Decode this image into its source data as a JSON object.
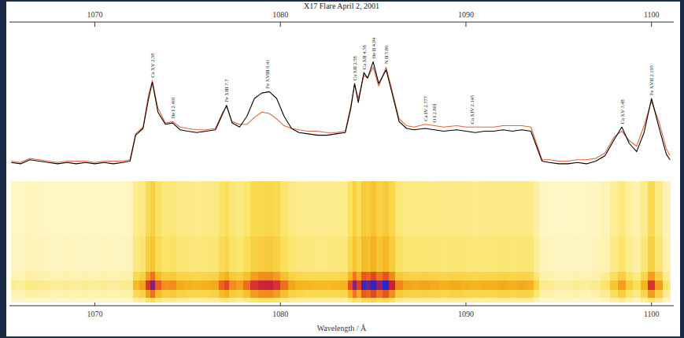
{
  "chart_data": {
    "type": "line",
    "title": "X17 Flare April 2, 2001",
    "x_label": "Wavelength / Å",
    "x": [
      1065.5,
      1066.0,
      1066.5,
      1067.0,
      1067.5,
      1068.0,
      1068.5,
      1069.0,
      1069.5,
      1070.0,
      1070.5,
      1071.0,
      1071.5,
      1071.9,
      1072.2,
      1072.6,
      1072.9,
      1073.1,
      1073.4,
      1073.8,
      1074.2,
      1074.6,
      1075.0,
      1075.5,
      1076.0,
      1076.5,
      1076.9,
      1077.1,
      1077.4,
      1077.8,
      1078.2,
      1078.6,
      1079.0,
      1079.4,
      1079.8,
      1080.2,
      1080.6,
      1081.0,
      1081.5,
      1082.0,
      1082.5,
      1083.0,
      1083.5,
      1083.8,
      1084.0,
      1084.2,
      1084.5,
      1084.7,
      1085.0,
      1085.3,
      1085.7,
      1086.0,
      1086.4,
      1086.8,
      1087.2,
      1087.8,
      1088.3,
      1088.8,
      1089.5,
      1090.0,
      1090.5,
      1091.0,
      1091.5,
      1092.0,
      1092.5,
      1093.0,
      1093.5,
      1093.8,
      1094.1,
      1094.5,
      1095.0,
      1095.5,
      1096.0,
      1096.5,
      1097.0,
      1097.5,
      1098.0,
      1098.4,
      1098.8,
      1099.2,
      1099.6,
      1100.0,
      1100.4,
      1100.8,
      1101.0
    ],
    "series": [
      {
        "color": "#000000",
        "values": [
          8,
          7,
          10,
          9,
          8,
          7,
          8,
          7,
          8,
          7,
          8,
          7,
          8,
          9,
          28,
          33,
          55,
          67,
          45,
          36,
          37,
          32,
          31,
          30,
          31,
          32,
          44,
          50,
          37,
          34,
          42,
          55,
          59,
          60,
          55,
          42,
          33,
          30,
          29,
          28,
          28,
          29,
          30,
          48,
          66,
          52,
          74,
          70,
          82,
          66,
          76,
          60,
          38,
          33,
          32,
          33,
          32,
          31,
          32,
          31,
          30,
          31,
          31,
          32,
          31,
          32,
          31,
          20,
          9,
          8,
          7,
          7,
          8,
          7,
          9,
          13,
          25,
          34,
          22,
          16,
          30,
          55,
          34,
          14,
          10
        ]
      },
      {
        "color": "#e2643c",
        "values": [
          9,
          8,
          11,
          10,
          9,
          8,
          9,
          9,
          9,
          8,
          9,
          9,
          9,
          10,
          29,
          34,
          58,
          68,
          48,
          37,
          38,
          34,
          33,
          32,
          32,
          33,
          45,
          49,
          38,
          36,
          36,
          41,
          45,
          44,
          40,
          35,
          33,
          32,
          31,
          31,
          30,
          30,
          31,
          50,
          65,
          55,
          72,
          70,
          78,
          64,
          78,
          62,
          40,
          35,
          34,
          36,
          35,
          34,
          35,
          34,
          34,
          34,
          34,
          35,
          35,
          35,
          34,
          22,
          10,
          10,
          9,
          9,
          10,
          10,
          11,
          15,
          27,
          31,
          24,
          20,
          35,
          53,
          38,
          18,
          13
        ]
      }
    ],
    "xlim": [
      1065.4,
      1101.2
    ],
    "ylim": [
      0,
      110
    ],
    "xticks": [
      1070,
      1080,
      1090,
      1100
    ],
    "tick_labels": "x",
    "annotations": [
      {
        "text": "Ca XV 2.58",
        "x": 1073.1
      },
      {
        "text": "He I 2.401",
        "x": 1074.2
      },
      {
        "text": "Fe XIII 7.7",
        "x": 1077.1
      },
      {
        "text": "Fe XVIII 9.41",
        "x": 1079.3
      },
      {
        "text": "Ca XII 2.58",
        "x": 1084.0
      },
      {
        "text": "Ca XII 4.58",
        "x": 1084.5
      },
      {
        "text": "He II 4.94",
        "x": 1085.0
      },
      {
        "text": "N II 5.86",
        "x": 1085.7
      },
      {
        "text": "Ca IV 2.777",
        "x": 1087.8
      },
      {
        "text": "O I 2.801",
        "x": 1088.3
      },
      {
        "text": "Ca XIV 2.145",
        "x": 1090.3
      },
      {
        "text": "Ca XV 3.48",
        "x": 1098.4
      },
      {
        "text": "Fe XVII 2.195",
        "x": 1100.0
      }
    ]
  }
}
